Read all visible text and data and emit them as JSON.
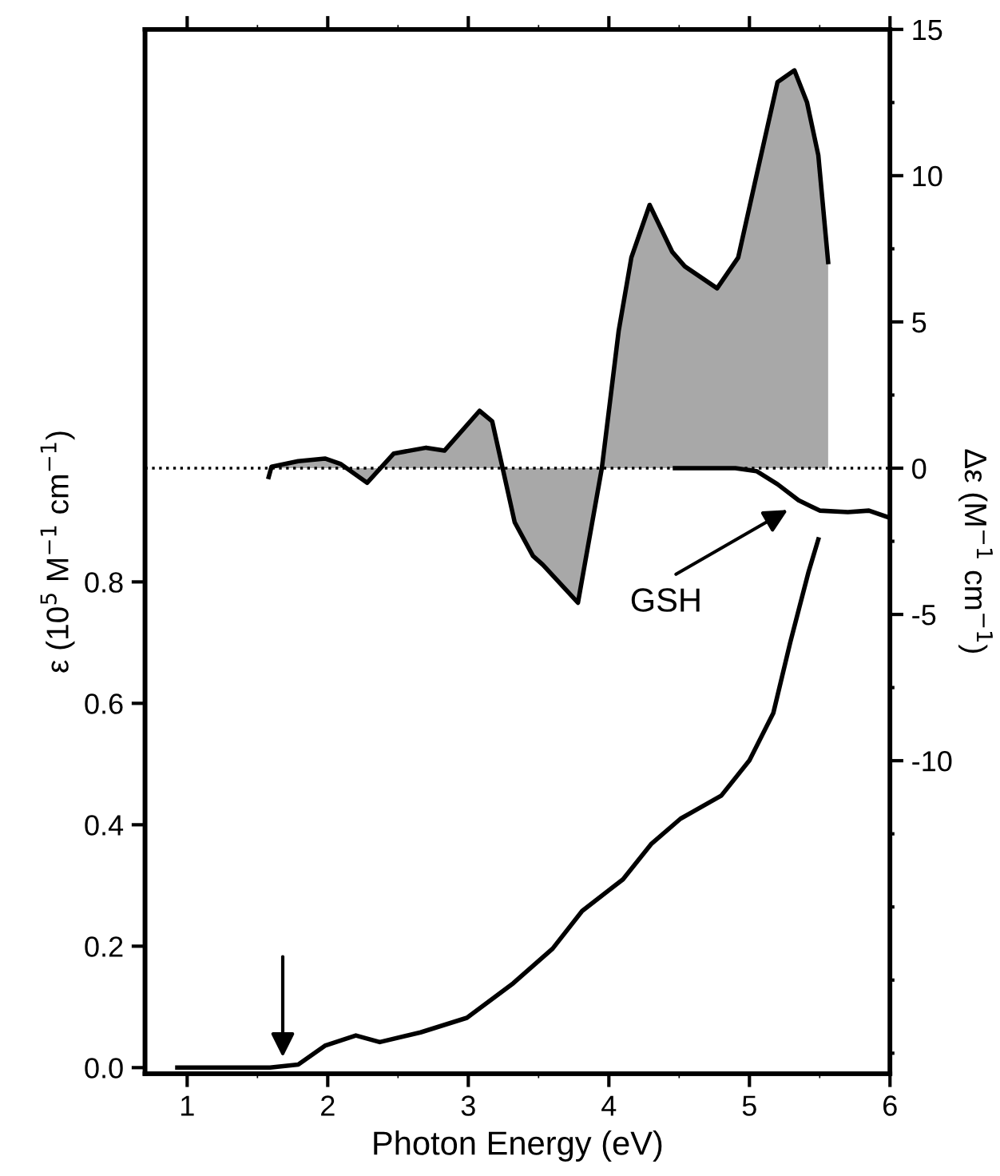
{
  "chart_data": {
    "type": "line",
    "xlabel": "Photon Energy (eV)",
    "ylabel": "ε (10$^{5}$ M$^{−1}$ cm$^{−1}$)",
    "y2label": "Δε (M$^{−1}$ cm$^{−1}$)",
    "xlim": [
      0.7,
      6
    ],
    "xticks": [
      1,
      2,
      3,
      4,
      5,
      6
    ],
    "ylim": [
      -0.01,
      1.71
    ],
    "yticks": [
      {
        "value": 0,
        "label": "0.0"
      },
      {
        "value": 0.2,
        "label": "0.2"
      },
      {
        "value": 0.4,
        "label": "0.4"
      },
      {
        "value": 0.6,
        "label": "0.6"
      },
      {
        "value": 0.8,
        "label": "0.8"
      }
    ],
    "y2lim": [
      -20.7,
      15
    ],
    "y2ticks": [
      {
        "value": -10,
        "label": "-10"
      },
      {
        "value": -5,
        "label": "-5"
      },
      0,
      5,
      10,
      15
    ],
    "grid": false,
    "legend": false,
    "series": [
      {
        "axis": "y",
        "color": "#000000",
        "x": [
          0.93,
          1.59,
          1.79,
          1.98,
          2.2,
          2.37,
          2.66,
          2.99,
          3.32,
          3.6,
          3.81,
          4.1,
          4.3,
          4.51,
          4.8,
          5.0,
          5.17,
          5.29,
          5.42,
          5.49
        ],
        "values": [
          0.0,
          0.0,
          0.005,
          0.036,
          0.053,
          0.042,
          0.058,
          0.082,
          0.139,
          0.196,
          0.258,
          0.31,
          0.368,
          0.41,
          0.448,
          0.506,
          0.584,
          0.7,
          0.816,
          0.87
        ]
      },
      {
        "type": "area",
        "axis": "y2",
        "color": "#a8a8a8",
        "x": [
          1.58,
          1.6,
          1.79,
          1.98,
          2.09,
          2.28,
          2.47,
          2.7,
          2.83,
          3.08,
          3.17,
          3.33,
          3.46,
          3.53,
          3.78,
          3.95,
          4.07,
          4.16,
          4.29,
          4.45,
          4.54,
          4.77,
          4.92,
          5.05,
          5.2,
          5.32,
          5.41,
          5.49,
          5.56
        ],
        "values": [
          -0.3,
          0.05,
          0.24,
          0.33,
          0.15,
          -0.5,
          0.5,
          0.7,
          0.6,
          1.96,
          1.6,
          -1.85,
          -3.0,
          -3.3,
          -4.6,
          0.0,
          4.7,
          7.2,
          9.0,
          7.4,
          6.9,
          6.15,
          7.2,
          10.0,
          13.2,
          13.6,
          12.5,
          10.7,
          7.05
        ]
      },
      {
        "axis": "y2",
        "color": "#000000",
        "x": [
          4.47,
          4.9,
          5.05,
          5.2,
          5.35,
          5.5,
          5.7,
          5.85,
          6.0
        ],
        "values": [
          0.0,
          0.0,
          -0.1,
          -0.55,
          -1.1,
          -1.45,
          -1.5,
          -1.45,
          -1.7
        ]
      }
    ],
    "ref_lines": [
      {
        "axis": "y2",
        "value": 0,
        "line_style": "dotted",
        "color": "#000000"
      }
    ],
    "annotations": [
      "GSH"
    ]
  }
}
